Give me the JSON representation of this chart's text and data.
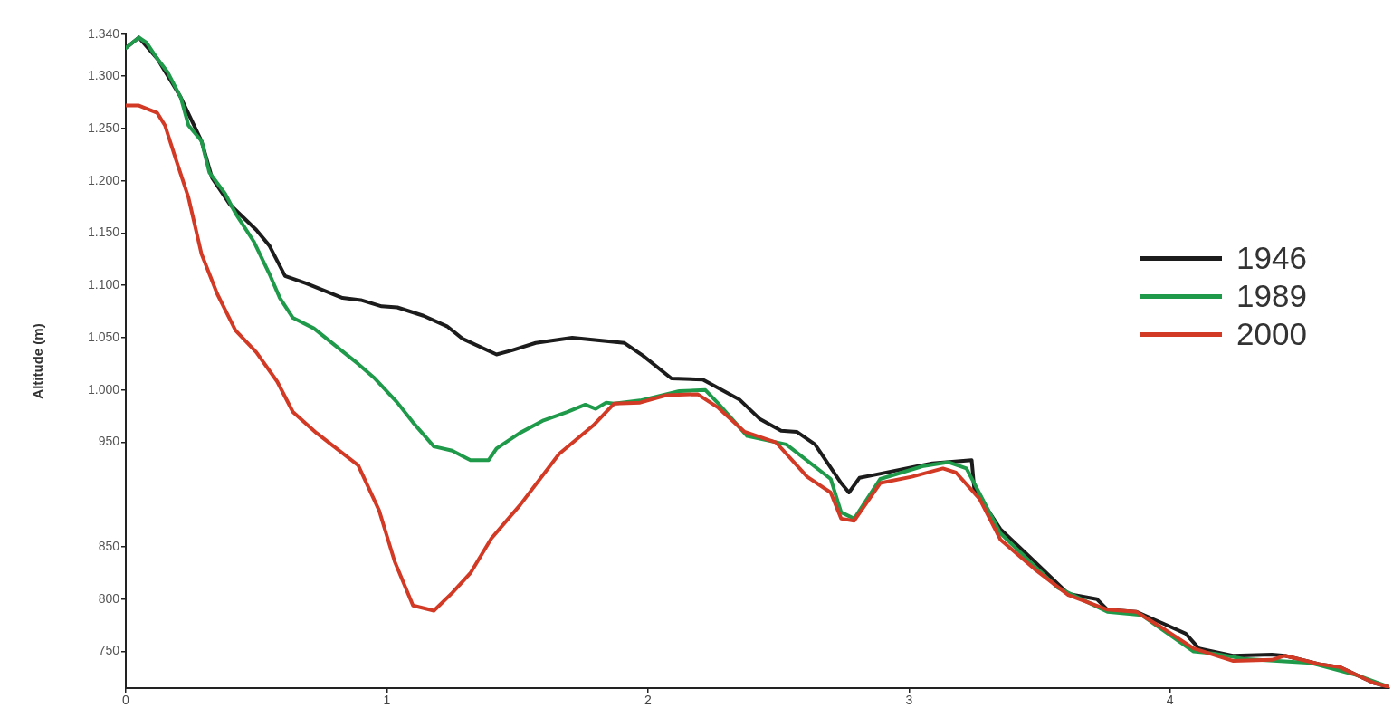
{
  "chart_data": {
    "type": "line",
    "ylabel": "Altitude (m)",
    "legend": "right",
    "xlim": [
      0,
      4.84
    ],
    "xticks": [
      0,
      1,
      2,
      3,
      4
    ],
    "ylim": [
      715,
      1340
    ],
    "yticks": [
      750,
      800,
      850,
      950,
      {
        "value": 1000,
        "label": "1.000"
      },
      {
        "value": 1050,
        "label": "1.050"
      },
      {
        "value": 1100,
        "label": "1.100"
      },
      {
        "value": 1150,
        "label": "1.150"
      },
      {
        "value": 1200,
        "label": "1.200"
      },
      {
        "value": 1250,
        "label": "1.250"
      },
      {
        "value": 1300,
        "label": "1.300"
      },
      {
        "value": 1340,
        "label": "1.340"
      }
    ],
    "series": [
      {
        "name": "1946",
        "color": "#1c1c1c",
        "x": [
          0,
          0.05,
          0.12,
          0.21,
          0.29,
          0.33,
          0.4,
          0.5,
          0.55,
          0.61,
          0.69,
          0.83,
          0.9,
          0.98,
          1.04,
          1.14,
          1.23,
          1.29,
          1.42,
          1.48,
          1.57,
          1.71,
          1.91,
          1.98,
          2.09,
          2.21,
          2.35,
          2.43,
          2.51,
          2.57,
          2.64,
          2.74,
          2.77,
          2.81,
          2.87,
          3.09,
          3.24,
          3.25,
          3.35,
          3.46,
          3.61,
          3.72,
          3.76,
          3.87,
          3.98,
          4.06,
          4.11,
          4.24,
          4.39,
          4.44,
          4.57,
          4.65,
          4.78,
          4.84
        ],
        "values": [
          1327,
          1337,
          1317,
          1280,
          1238,
          1203,
          1177,
          1153,
          1138,
          1109,
          1102,
          1088,
          1086,
          1080,
          1079,
          1071,
          1061,
          1049,
          1034,
          1038,
          1045,
          1050,
          1045,
          1033,
          1011,
          1010,
          991,
          972,
          961,
          960,
          948,
          911,
          902,
          916,
          919,
          930,
          933,
          905,
          867,
          841,
          805,
          800,
          790,
          788,
          776,
          767,
          753,
          746,
          747,
          746,
          738,
          735,
          720,
          716
        ]
      },
      {
        "name": "1989",
        "color": "#1f9a4a",
        "x": [
          0,
          0.05,
          0.08,
          0.12,
          0.16,
          0.21,
          0.24,
          0.29,
          0.32,
          0.38,
          0.42,
          0.49,
          0.55,
          0.59,
          0.64,
          0.72,
          0.8,
          0.89,
          0.95,
          1.04,
          1.1,
          1.18,
          1.25,
          1.32,
          1.39,
          1.42,
          1.51,
          1.6,
          1.69,
          1.76,
          1.8,
          1.84,
          1.87,
          1.97,
          2.12,
          2.22,
          2.27,
          2.38,
          2.53,
          2.7,
          2.74,
          2.79,
          2.89,
          3.05,
          3.15,
          3.22,
          3.35,
          3.48,
          3.57,
          3.76,
          3.89,
          4.09,
          4.17,
          4.28,
          4.54,
          4.72,
          4.84
        ],
        "values": [
          1327,
          1337,
          1332,
          1317,
          1304,
          1280,
          1253,
          1238,
          1208,
          1188,
          1169,
          1142,
          1111,
          1088,
          1069,
          1059,
          1043,
          1025,
          1012,
          988,
          969,
          946,
          942,
          933,
          933,
          944,
          959,
          971,
          979,
          986,
          982,
          988,
          987,
          990,
          999,
          1000,
          987,
          956,
          948,
          915,
          883,
          877,
          915,
          927,
          931,
          925,
          863,
          832,
          811,
          788,
          785,
          750,
          748,
          743,
          739,
          727,
          716
        ]
      },
      {
        "name": "2000",
        "color": "#d23a26",
        "x": [
          0,
          0.05,
          0.12,
          0.15,
          0.19,
          0.24,
          0.29,
          0.35,
          0.42,
          0.5,
          0.58,
          0.64,
          0.73,
          0.89,
          0.97,
          1.03,
          1.1,
          1.18,
          1.25,
          1.32,
          1.4,
          1.51,
          1.66,
          1.79,
          1.87,
          1.97,
          2.07,
          2.19,
          2.27,
          2.37,
          2.49,
          2.61,
          2.7,
          2.74,
          2.79,
          2.89,
          3.01,
          3.13,
          3.18,
          3.27,
          3.35,
          3.48,
          3.61,
          3.76,
          3.87,
          3.98,
          4.09,
          4.24,
          4.39,
          4.44,
          4.57,
          4.65,
          4.78,
          4.84
        ],
        "values": [
          1272,
          1272,
          1265,
          1253,
          1222,
          1184,
          1130,
          1092,
          1057,
          1036,
          1008,
          979,
          959,
          928,
          885,
          836,
          794,
          789,
          806,
          825,
          858,
          890,
          939,
          966,
          987,
          988,
          995,
          996,
          983,
          960,
          950,
          917,
          902,
          877,
          875,
          911,
          917,
          925,
          921,
          896,
          857,
          829,
          804,
          790,
          788,
          771,
          753,
          741,
          742,
          746,
          738,
          735,
          720,
          716
        ]
      }
    ]
  }
}
